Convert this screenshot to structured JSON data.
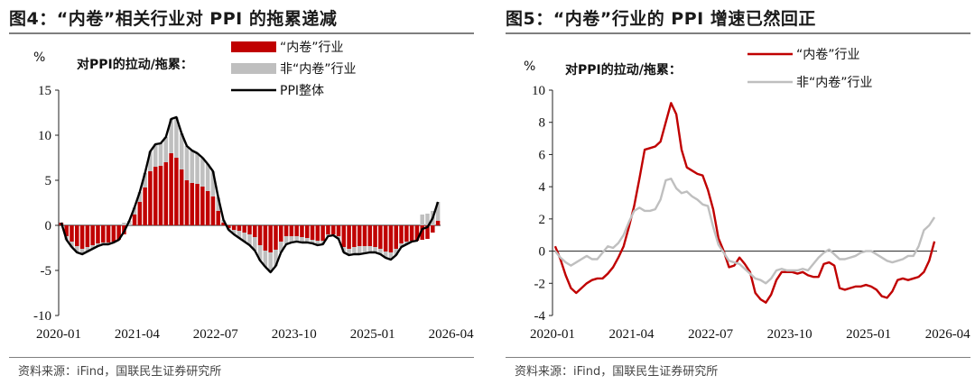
{
  "source_text": "资料来源：iFind，国联民生证券研究所",
  "chart_data": [
    {
      "type": "bar+line",
      "title": "图4：“内卷”相关行业对 PPI 的拖累递减",
      "unit_label": "%",
      "subtitle": "对PPI的拉动/拖累：",
      "x_tick_labels": [
        "2020-01",
        "2021-04",
        "2022-07",
        "2023-10",
        "2025-01",
        "2026-04"
      ],
      "ylim": [
        -10,
        15
      ],
      "y_ticks": [
        -10,
        -5,
        0,
        5,
        10,
        15
      ],
      "grid": false,
      "legend_position": "top-right",
      "series": [
        {
          "name": "“内卷”行业",
          "kind": "bar",
          "color": "#c00000",
          "values": [
            0.3,
            -1.2,
            -1.8,
            -2.3,
            -2.6,
            -2.4,
            -2.2,
            -2.0,
            -1.9,
            -1.9,
            -1.8,
            -1.6,
            -1.0,
            0.0,
            1.2,
            2.6,
            4.2,
            6.0,
            6.5,
            6.6,
            7.0,
            8.0,
            7.5,
            6.2,
            5.0,
            4.7,
            4.6,
            4.3,
            3.8,
            3.2,
            1.6,
            0.3,
            -0.3,
            -0.5,
            -0.6,
            -0.8,
            -1.0,
            -1.3,
            -2.2,
            -2.8,
            -3.0,
            -2.7,
            -1.8,
            -1.2,
            -1.2,
            -1.2,
            -1.3,
            -1.4,
            -1.6,
            -1.7,
            -1.7,
            -1.0,
            -1.0,
            -1.2,
            -2.4,
            -2.6,
            -2.4,
            -2.3,
            -2.3,
            -2.3,
            -2.4,
            -2.6,
            -2.9,
            -3.0,
            -2.6,
            -2.0,
            -1.8,
            -1.7,
            -1.7,
            -1.6,
            -1.5,
            -0.8,
            0.5
          ]
        },
        {
          "name": "非“内卷”行业",
          "kind": "bar",
          "color": "#bfbfbf",
          "values": [
            0.0,
            -0.4,
            -0.6,
            -0.7,
            -0.6,
            -0.5,
            -0.4,
            -0.3,
            -0.2,
            -0.2,
            -0.1,
            0.0,
            0.3,
            0.5,
            0.8,
            1.1,
            1.6,
            2.2,
            2.5,
            2.5,
            2.8,
            3.8,
            4.5,
            4.0,
            3.8,
            3.6,
            3.4,
            3.2,
            3.0,
            2.8,
            1.5,
            0.3,
            -0.2,
            -0.5,
            -0.8,
            -1.0,
            -1.2,
            -1.5,
            -1.7,
            -1.8,
            -2.2,
            -1.8,
            -1.2,
            -0.9,
            -0.7,
            -0.6,
            -0.6,
            -0.5,
            -0.4,
            -0.5,
            -0.4,
            -0.2,
            -0.1,
            -0.3,
            -0.6,
            -0.7,
            -0.8,
            -0.9,
            -0.8,
            -0.7,
            -0.6,
            -0.6,
            -0.7,
            -0.8,
            -0.7,
            -0.4,
            -0.3,
            -0.1,
            0.0,
            1.2,
            1.3,
            1.6,
            2.1
          ]
        },
        {
          "name": "PPI整体",
          "kind": "line",
          "color": "#000000",
          "values": [
            0.3,
            -1.6,
            -2.4,
            -3.0,
            -3.2,
            -2.9,
            -2.6,
            -2.3,
            -2.1,
            -2.1,
            -1.9,
            -1.6,
            -0.7,
            0.5,
            2.0,
            3.7,
            5.8,
            8.2,
            9.0,
            9.1,
            9.8,
            11.8,
            12.0,
            10.2,
            8.8,
            8.3,
            8.0,
            7.5,
            6.8,
            6.0,
            3.1,
            0.6,
            -0.5,
            -1.0,
            -1.4,
            -1.8,
            -2.2,
            -2.8,
            -3.9,
            -4.6,
            -5.2,
            -4.5,
            -3.0,
            -2.1,
            -1.9,
            -1.8,
            -1.9,
            -1.9,
            -2.0,
            -2.2,
            -2.1,
            -1.2,
            -1.1,
            -1.5,
            -3.0,
            -3.3,
            -3.2,
            -3.2,
            -3.1,
            -3.0,
            -3.0,
            -3.2,
            -3.6,
            -3.8,
            -3.3,
            -2.4,
            -2.1,
            -1.8,
            -1.7,
            -0.4,
            -0.2,
            0.8,
            2.6
          ]
        }
      ]
    },
    {
      "type": "line",
      "title": "图5：“内卷”行业的 PPI 增速已然回正",
      "unit_label": "%",
      "subtitle": "对PPI的拉动/拖累：",
      "x_tick_labels": [
        "2020-01",
        "2021-04",
        "2022-07",
        "2023-10",
        "2025-01",
        "2026-04"
      ],
      "ylim": [
        -4,
        10
      ],
      "y_ticks": [
        -4,
        -2,
        0,
        2,
        4,
        6,
        8,
        10
      ],
      "grid": false,
      "legend_position": "top-right",
      "series": [
        {
          "name": "“内卷”行业",
          "color": "#c00000",
          "values": [
            0.3,
            -0.5,
            -1.5,
            -2.3,
            -2.6,
            -2.3,
            -2.0,
            -1.8,
            -1.7,
            -1.7,
            -1.4,
            -1.0,
            -0.4,
            0.3,
            1.5,
            2.8,
            4.5,
            6.3,
            6.4,
            6.5,
            6.8,
            8.0,
            9.2,
            8.5,
            6.3,
            5.2,
            5.0,
            4.8,
            4.7,
            3.8,
            2.6,
            0.8,
            0.0,
            -1.0,
            -0.9,
            -0.4,
            -0.8,
            -1.3,
            -2.6,
            -3.0,
            -3.2,
            -2.7,
            -1.8,
            -1.3,
            -1.3,
            -1.3,
            -1.4,
            -1.3,
            -1.5,
            -1.6,
            -1.6,
            -0.8,
            -0.7,
            -0.9,
            -2.3,
            -2.4,
            -2.3,
            -2.2,
            -2.2,
            -2.1,
            -2.2,
            -2.4,
            -2.8,
            -2.9,
            -2.5,
            -1.8,
            -1.7,
            -1.8,
            -1.7,
            -1.6,
            -1.3,
            -0.6,
            0.6
          ]
        },
        {
          "name": "非“内卷”行业",
          "color": "#bfbfbf",
          "values": [
            0.0,
            -0.4,
            -0.7,
            -0.9,
            -0.7,
            -0.5,
            -0.3,
            -0.5,
            -0.5,
            -0.1,
            0.3,
            0.2,
            0.5,
            1.0,
            1.8,
            2.5,
            2.7,
            2.5,
            2.5,
            2.6,
            3.2,
            4.4,
            4.5,
            3.9,
            3.6,
            3.7,
            3.4,
            3.2,
            2.9,
            2.8,
            1.5,
            0.4,
            -0.1,
            -0.6,
            -0.7,
            -0.8,
            -1.1,
            -1.4,
            -1.7,
            -1.8,
            -2.0,
            -1.7,
            -1.2,
            -1.1,
            -1.2,
            -1.2,
            -1.2,
            -1.1,
            -1.2,
            -0.8,
            -0.4,
            -0.1,
            0.1,
            -0.2,
            -0.5,
            -0.5,
            -0.4,
            -0.3,
            -0.1,
            0.0,
            0.0,
            -0.2,
            -0.4,
            -0.6,
            -0.7,
            -0.6,
            -0.5,
            -0.3,
            -0.3,
            0.3,
            1.3,
            1.6,
            2.1
          ]
        }
      ]
    }
  ]
}
